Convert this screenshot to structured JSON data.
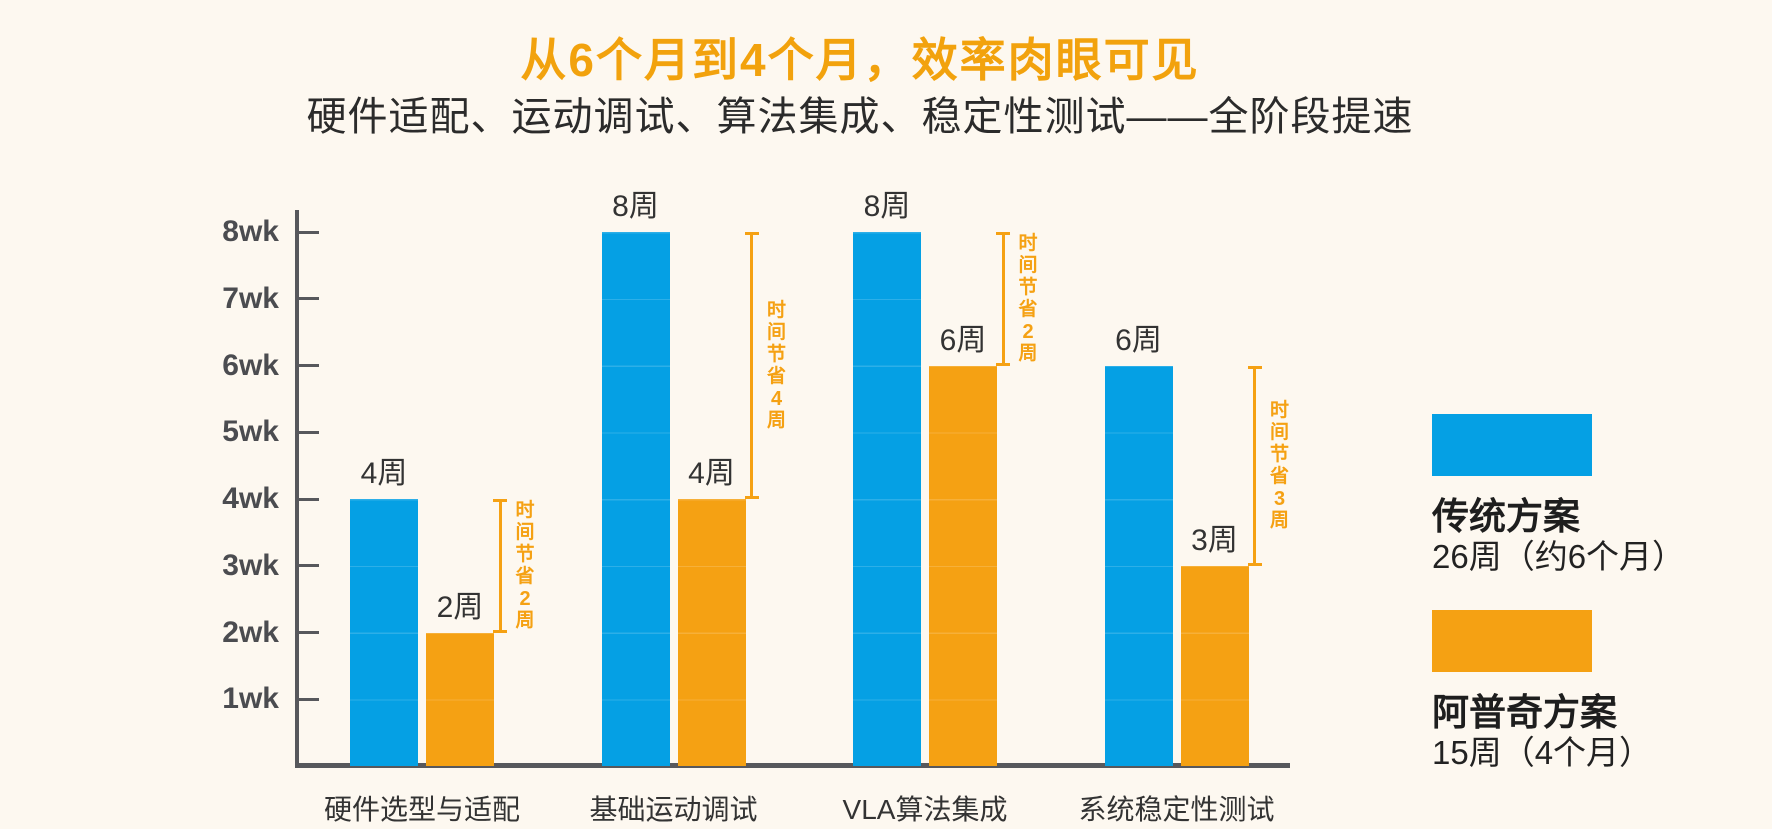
{
  "title": "从6个月到4个月，效率肉眼可见",
  "subtitle": "硬件适配、运动调试、算法集成、稳定性测试——全阶段提速",
  "colors": {
    "background": "#FDF8F0",
    "traditional_blue": "#05A0E4",
    "apuqi_orange": "#F5A113",
    "title_orange": "#F2A20D",
    "axis_gray": "#57585C",
    "text_dark": "#2B2B2B"
  },
  "chart_data": {
    "type": "bar",
    "title": "从6个月到4个月，效率肉眼可见",
    "subtitle": "硬件适配、运动调试、算法集成、稳定性测试——全阶段提速",
    "categories": [
      "硬件选型与适配",
      "基础运动调试",
      "VLA算法集成",
      "系统稳定性测试"
    ],
    "series": [
      {
        "name": "传统方案",
        "values": [
          4,
          8,
          8,
          6
        ],
        "labels": [
          "4周",
          "8周",
          "8周",
          "6周"
        ],
        "color": "#05A0E4"
      },
      {
        "name": "阿普奇方案",
        "values": [
          2,
          4,
          6,
          3
        ],
        "labels": [
          "2周",
          "4周",
          "6周",
          "3周"
        ],
        "color": "#F5A113"
      }
    ],
    "savings_annotations": [
      {
        "text": "时间节省",
        "weeks": "2",
        "suffix": "周",
        "from_value": 4,
        "to_value": 2
      },
      {
        "text": "时间节省",
        "weeks": "4",
        "suffix": "周",
        "from_value": 8,
        "to_value": 4
      },
      {
        "text": "时间节省",
        "weeks": "2",
        "suffix": "周",
        "from_value": 8,
        "to_value": 6
      },
      {
        "text": "时间节省",
        "weeks": "3",
        "suffix": "周",
        "from_value": 6,
        "to_value": 3
      }
    ],
    "y_ticks": [
      {
        "label": "8wk",
        "value": 8
      },
      {
        "label": "7wk",
        "value": 7
      },
      {
        "label": "6wk",
        "value": 6
      },
      {
        "label": "5wk",
        "value": 5
      },
      {
        "label": "4wk",
        "value": 4
      },
      {
        "label": "3wk",
        "value": 3
      },
      {
        "label": "2wk",
        "value": 2
      },
      {
        "label": "1wk",
        "value": 1
      }
    ],
    "ylim": [
      0,
      8.3
    ],
    "grid": false,
    "legend_position": "right"
  },
  "legend": {
    "items": [
      {
        "name": "传统方案",
        "detail": "26周（约6个月）",
        "color_key": "traditional_blue"
      },
      {
        "name": "阿普奇方案",
        "detail": "15周（4个月）",
        "color_key": "apuqi_orange"
      }
    ]
  }
}
